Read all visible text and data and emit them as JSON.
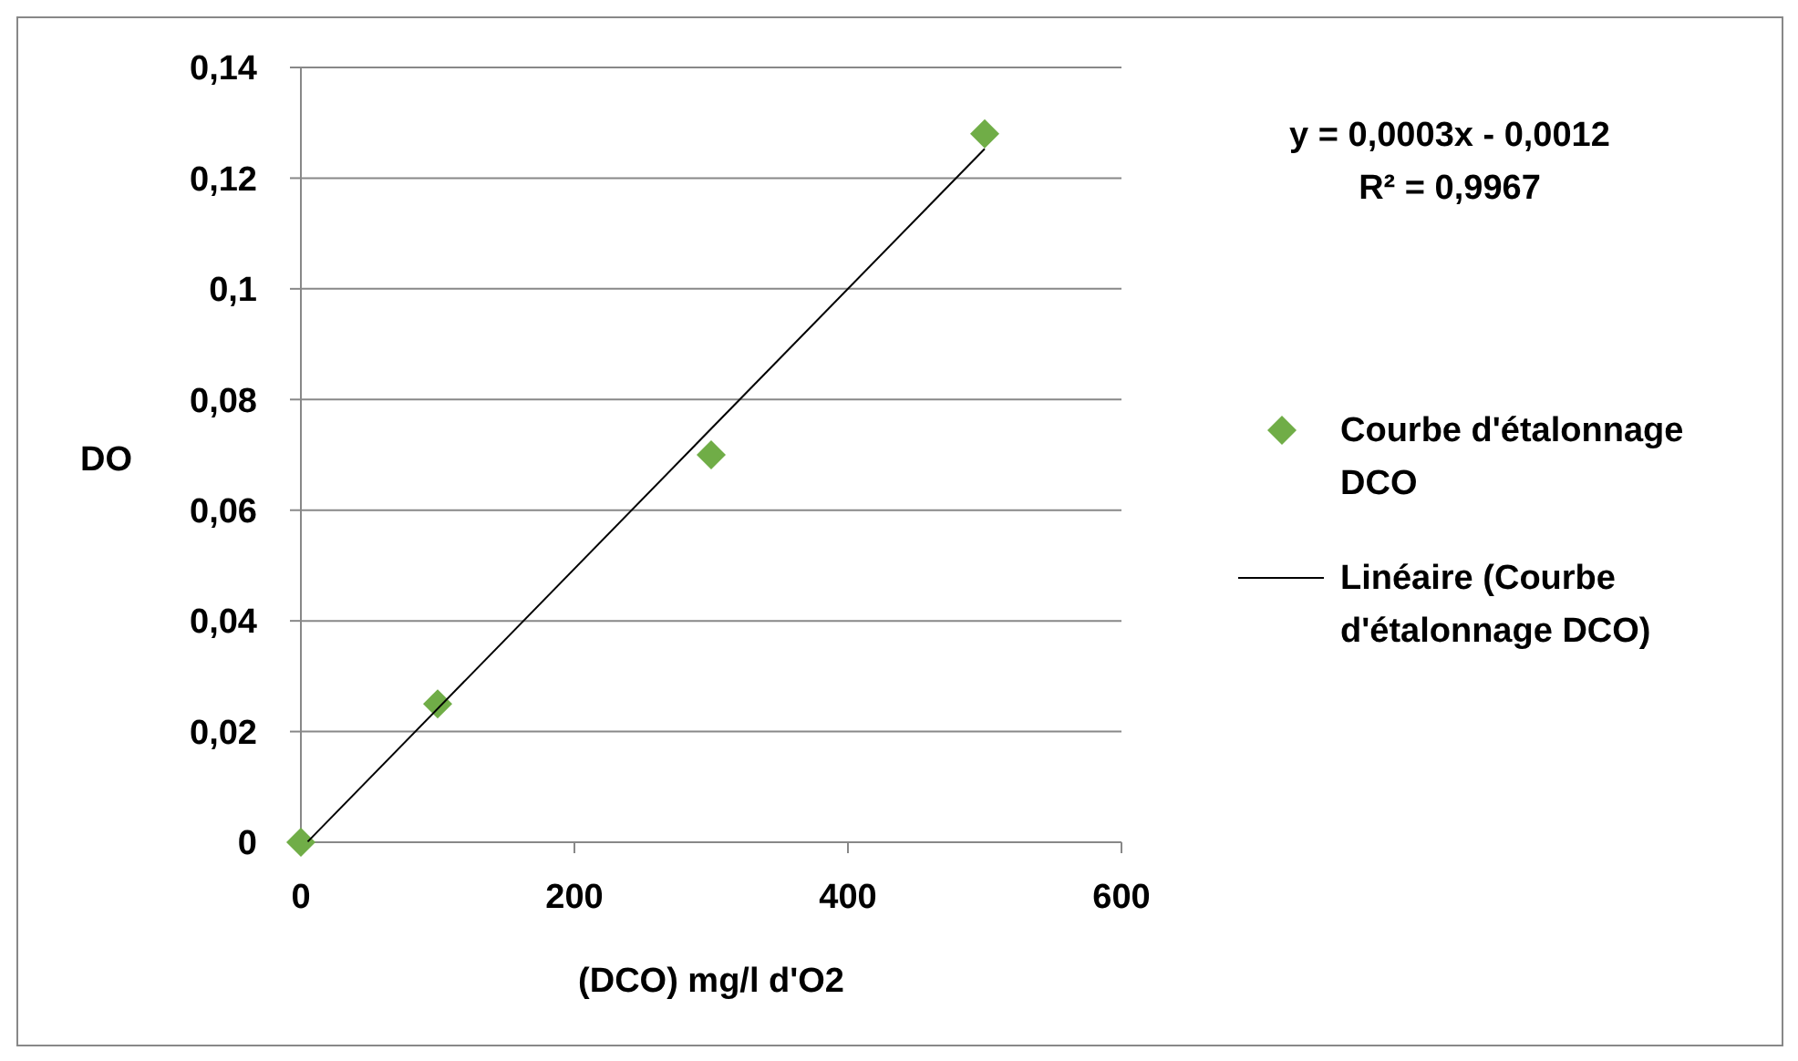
{
  "chart_data": {
    "type": "scatter",
    "xlabel": "(DCO) mg/l d'O2",
    "ylabel": "DO",
    "annotations": [
      "y = 0,0003x - 0,0012",
      "R² = 0,9967"
    ],
    "xlim": [
      0,
      600
    ],
    "xticks": [
      0,
      200,
      400,
      600
    ],
    "ylim": [
      0,
      0.14
    ],
    "yticks": [
      {
        "value": 0,
        "label": "0"
      },
      {
        "value": 0.02,
        "label": "0,02"
      },
      {
        "value": 0.04,
        "label": "0,04"
      },
      {
        "value": 0.06,
        "label": "0,06"
      },
      {
        "value": 0.08,
        "label": "0,08"
      },
      {
        "value": 0.1,
        "label": "0,1"
      },
      {
        "value": 0.12,
        "label": "0,12"
      },
      {
        "value": 0.14,
        "label": "0,14"
      }
    ],
    "grid": "y",
    "legend": "right",
    "series": [
      {
        "name": "Courbe d'étalonnage DCO",
        "type": "scatter",
        "marker": "diamond",
        "color": "#70ad47",
        "x": [
          0,
          100,
          300,
          500
        ],
        "values": [
          0,
          0.025,
          0.07,
          0.128
        ]
      },
      {
        "name": "Linéaire (Courbe d'étalonnage DCO)",
        "type": "line",
        "line_style": "solid",
        "marker": "none",
        "color": "#000000",
        "x": [
          5,
          500
        ],
        "values": [
          0.0001,
          0.1253
        ]
      }
    ]
  }
}
